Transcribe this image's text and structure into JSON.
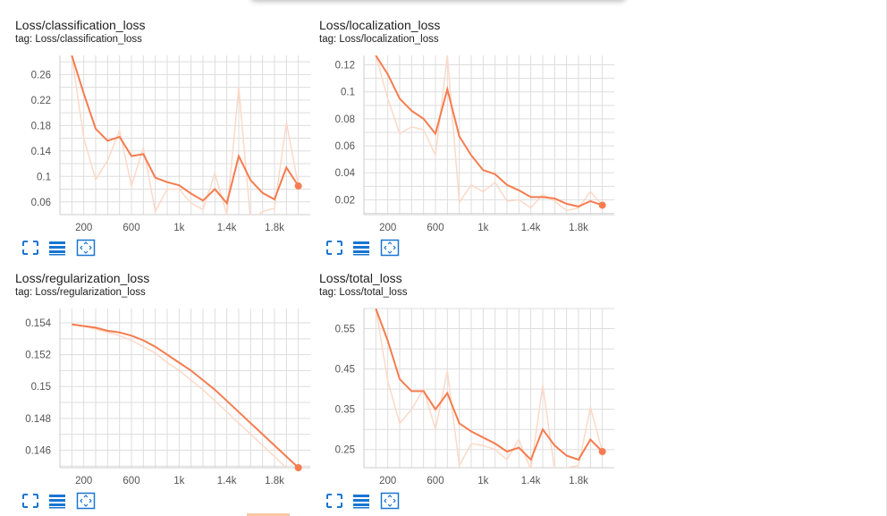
{
  "colors": {
    "series": "#f57c4f",
    "raw": "#fcd9c8",
    "grid": "#dddddd",
    "icon": "#1976d2"
  },
  "icons": [
    "fullscreen-icon",
    "toggle-log-scale-icon",
    "fit-domain-icon"
  ],
  "chart_data": [
    {
      "type": "line",
      "title": "Loss/classification_loss",
      "tag": "tag: Loss/classification_loss",
      "xticks": [
        200,
        600,
        1000,
        1400,
        1800
      ],
      "xtick_labels": [
        "200",
        "600",
        "1k",
        "1.4k",
        "1.8k"
      ],
      "yticks": [
        0.06,
        0.1,
        0.14,
        0.18,
        0.22,
        0.26
      ],
      "ytick_labels": [
        "0.06",
        "0.1",
        "0.14",
        "0.18",
        "0.22",
        "0.26"
      ],
      "xlim": [
        0,
        2100
      ],
      "ylim": [
        0.04,
        0.29
      ],
      "x": [
        100,
        200,
        300,
        400,
        500,
        600,
        700,
        800,
        900,
        1000,
        1100,
        1200,
        1300,
        1400,
        1500,
        1600,
        1700,
        1800,
        1900,
        2000
      ],
      "smoothed": [
        0.29,
        0.23,
        0.175,
        0.156,
        0.162,
        0.132,
        0.135,
        0.098,
        0.091,
        0.086,
        0.073,
        0.062,
        0.08,
        0.058,
        0.132,
        0.094,
        0.074,
        0.064,
        0.114,
        0.085
      ],
      "raw": [
        0.29,
        0.16,
        0.095,
        0.125,
        0.172,
        0.085,
        0.145,
        0.045,
        0.08,
        0.08,
        0.058,
        0.048,
        0.105,
        0.04,
        0.24,
        0.03,
        0.045,
        0.05,
        0.185,
        0.085
      ]
    },
    {
      "type": "line",
      "title": "Loss/localization_loss",
      "tag": "tag: Loss/localization_loss",
      "xticks": [
        200,
        600,
        1000,
        1400,
        1800
      ],
      "xtick_labels": [
        "200",
        "600",
        "1k",
        "1.4k",
        "1.8k"
      ],
      "yticks": [
        0.02,
        0.04,
        0.06,
        0.08,
        0.1,
        0.12
      ],
      "ytick_labels": [
        "0.02",
        "0.04",
        "0.06",
        "0.08",
        "0.1",
        "0.12"
      ],
      "xlim": [
        0,
        2100
      ],
      "ylim": [
        0.009,
        0.127
      ],
      "x": [
        100,
        200,
        300,
        400,
        500,
        600,
        700,
        800,
        900,
        1000,
        1100,
        1200,
        1300,
        1400,
        1500,
        1600,
        1700,
        1800,
        1900,
        2000
      ],
      "smoothed": [
        0.127,
        0.113,
        0.095,
        0.086,
        0.08,
        0.069,
        0.102,
        0.067,
        0.053,
        0.042,
        0.039,
        0.031,
        0.027,
        0.022,
        0.022,
        0.021,
        0.017,
        0.015,
        0.019,
        0.016
      ],
      "raw": [
        0.127,
        0.095,
        0.069,
        0.074,
        0.072,
        0.053,
        0.127,
        0.018,
        0.031,
        0.026,
        0.033,
        0.019,
        0.02,
        0.014,
        0.024,
        0.019,
        0.012,
        0.014,
        0.026,
        0.016
      ]
    },
    {
      "type": "line",
      "title": "Loss/regularization_loss",
      "tag": "tag: Loss/regularization_loss",
      "xticks": [
        200,
        600,
        1000,
        1400,
        1800
      ],
      "xtick_labels": [
        "200",
        "600",
        "1k",
        "1.4k",
        "1.8k"
      ],
      "yticks": [
        0.146,
        0.148,
        0.15,
        0.152,
        0.154
      ],
      "ytick_labels": [
        "0.146",
        "0.148",
        "0.15",
        "0.152",
        "0.154"
      ],
      "xlim": [
        0,
        2100
      ],
      "ylim": [
        0.1449,
        0.1549
      ],
      "x": [
        100,
        200,
        300,
        400,
        500,
        600,
        700,
        800,
        900,
        1000,
        1100,
        1200,
        1300,
        1400,
        1500,
        1600,
        1700,
        1800,
        1900,
        2000
      ],
      "smoothed": [
        0.1539,
        0.1538,
        0.1537,
        0.1535,
        0.1534,
        0.1532,
        0.1529,
        0.1525,
        0.152,
        0.1515,
        0.151,
        0.1504,
        0.1498,
        0.1491,
        0.1484,
        0.1477,
        0.147,
        0.1463,
        0.1456,
        0.1449
      ],
      "raw": [
        0.1539,
        0.1538,
        0.1536,
        0.1534,
        0.1532,
        0.1529,
        0.1525,
        0.1521,
        0.1515,
        0.151,
        0.1504,
        0.1498,
        0.1491,
        0.1484,
        0.1477,
        0.147,
        0.1463,
        0.1456,
        0.1449,
        0.1444
      ]
    },
    {
      "type": "line",
      "title": "Loss/total_loss",
      "tag": "tag: Loss/total_loss",
      "xticks": [
        200,
        600,
        1000,
        1400,
        1800
      ],
      "xtick_labels": [
        "200",
        "600",
        "1k",
        "1.4k",
        "1.8k"
      ],
      "yticks": [
        0.25,
        0.35,
        0.45,
        0.55
      ],
      "ytick_labels": [
        "0.25",
        "0.35",
        "0.45",
        "0.55"
      ],
      "xlim": [
        0,
        2100
      ],
      "ylim": [
        0.205,
        0.6
      ],
      "x": [
        100,
        200,
        300,
        400,
        500,
        600,
        700,
        800,
        900,
        1000,
        1100,
        1200,
        1300,
        1400,
        1500,
        1600,
        1700,
        1800,
        1900,
        2000
      ],
      "smoothed": [
        0.6,
        0.52,
        0.425,
        0.395,
        0.395,
        0.35,
        0.39,
        0.315,
        0.295,
        0.28,
        0.265,
        0.245,
        0.255,
        0.225,
        0.3,
        0.26,
        0.235,
        0.225,
        0.275,
        0.245
      ],
      "raw": [
        0.6,
        0.42,
        0.315,
        0.35,
        0.4,
        0.3,
        0.445,
        0.21,
        0.265,
        0.26,
        0.25,
        0.225,
        0.275,
        0.2,
        0.41,
        0.2,
        0.205,
        0.21,
        0.355,
        0.245
      ]
    }
  ]
}
